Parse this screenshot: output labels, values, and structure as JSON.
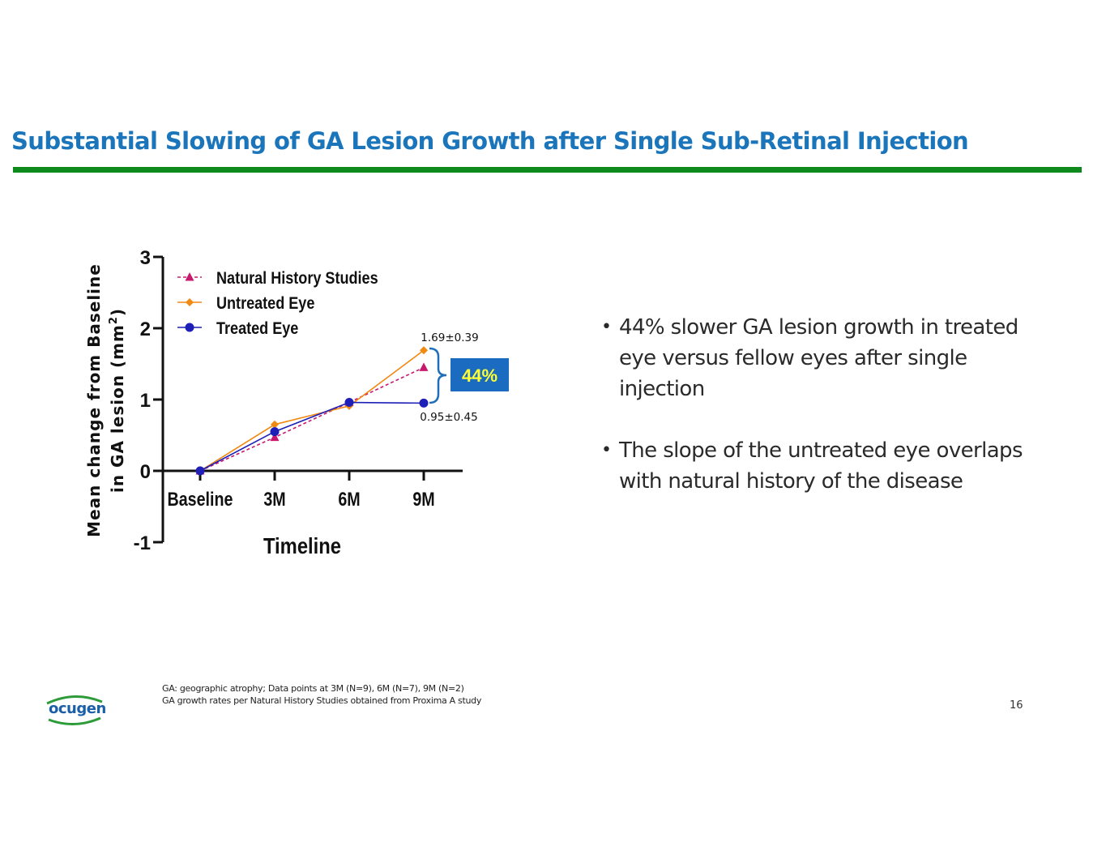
{
  "slide": {
    "title": "Substantial Slowing of GA Lesion Growth after Single Sub-Retinal Injection",
    "page_number": "16"
  },
  "colors": {
    "title": "#1b75bb",
    "rule": "#0e8a1c",
    "natural_history": "#c8186e",
    "untreated": "#f08a12",
    "treated": "#1d1fb6",
    "bracket": "#1f6fb8",
    "badge_bg": "#1b6cc0",
    "badge_text": "#ffff33"
  },
  "chart_data": {
    "type": "line",
    "title": "",
    "xlabel": "Timeline",
    "ylabel_line1": "Mean change from Baseline",
    "ylabel_line2_prefix": "in GA lesion (mm",
    "ylabel_superscript": "2",
    "ylabel_line2_suffix": ")",
    "categories": [
      "Baseline",
      "3M",
      "6M",
      "9M"
    ],
    "yticks": [
      3,
      2,
      1,
      0,
      -1
    ],
    "ylim": [
      -1,
      3
    ],
    "grid": false,
    "legend_position": "top-left",
    "series": [
      {
        "name": "Natural History Studies",
        "marker": "triangle",
        "dashed": true,
        "color": "#c8186e",
        "values": [
          0,
          0.47,
          0.96,
          1.45
        ]
      },
      {
        "name": "Untreated Eye",
        "marker": "diamond",
        "dashed": false,
        "color": "#f08a12",
        "values": [
          0,
          0.65,
          0.91,
          1.69
        ]
      },
      {
        "name": "Treated Eye",
        "marker": "circle",
        "dashed": false,
        "color": "#1d1fb6",
        "values": [
          0,
          0.55,
          0.96,
          0.95
        ]
      }
    ],
    "annotations": {
      "untreated_label": "1.69±0.39",
      "treated_label": "0.95±0.45",
      "difference_badge": "44%"
    }
  },
  "bullets": [
    "44% slower GA lesion growth in treated eye versus fellow eyes after single injection",
    "The slope of the untreated eye overlaps with natural history of the disease"
  ],
  "footnotes": [
    "GA: geographic atrophy; Data points at 3M (N=9), 6M (N=7), 9M (N=2)",
    "GA growth rates per Natural History Studies obtained from Proxima A study"
  ],
  "logo": {
    "text": "ocugen"
  }
}
